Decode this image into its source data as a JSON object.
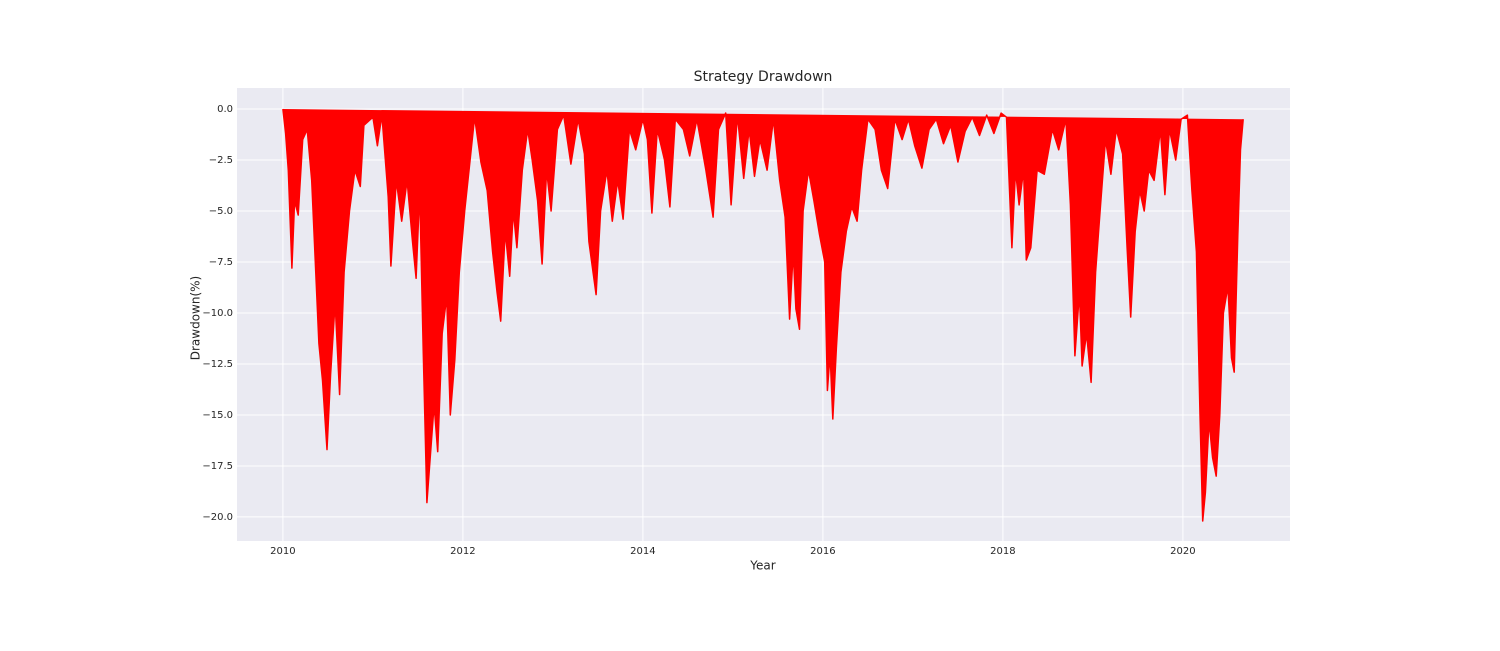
{
  "chart_data": {
    "type": "area",
    "title": "Strategy Drawdown",
    "x_label": "Year",
    "y_label": "Drawdown(%)",
    "color": "#ff0000",
    "background": "#eaeaf2",
    "grid": true,
    "x": [
      2010.0,
      2010.03,
      2010.06,
      2010.1,
      2010.13,
      2010.17,
      2010.22,
      2010.27,
      2010.32,
      2010.37,
      2010.4,
      2010.44,
      2010.49,
      2010.53,
      2010.58,
      2010.63,
      2010.68,
      2010.74,
      2010.8,
      2010.86,
      2010.9,
      2011.0,
      2011.05,
      2011.1,
      2011.17,
      2011.2,
      2011.26,
      2011.32,
      2011.38,
      2011.44,
      2011.48,
      2011.52,
      2011.56,
      2011.6,
      2011.64,
      2011.68,
      2011.72,
      2011.77,
      2011.82,
      2011.86,
      2011.91,
      2011.96,
      2012.02,
      2012.08,
      2012.13,
      2012.2,
      2012.27,
      2012.33,
      2012.38,
      2012.42,
      2012.47,
      2012.52,
      2012.56,
      2012.6,
      2012.66,
      2012.72,
      2012.77,
      2012.83,
      2012.88,
      2012.93,
      2012.98,
      2013.05,
      2013.12,
      2013.2,
      2013.28,
      2013.35,
      2013.4,
      2013.48,
      2013.53,
      2013.6,
      2013.66,
      2013.72,
      2013.78,
      2013.85,
      2013.92,
      2014.0,
      2014.05,
      2014.1,
      2014.16,
      2014.24,
      2014.3,
      2014.36,
      2014.45,
      2014.52,
      2014.6,
      2014.7,
      2014.78,
      2014.84,
      2014.92,
      2014.98,
      2015.05,
      2015.12,
      2015.18,
      2015.24,
      2015.3,
      2015.38,
      2015.45,
      2015.52,
      2015.58,
      2015.63,
      2015.67,
      2015.7,
      2015.74,
      2015.78,
      2015.84,
      2015.9,
      2015.96,
      2016.02,
      2016.05,
      2016.08,
      2016.11,
      2016.15,
      2016.2,
      2016.26,
      2016.32,
      2016.38,
      2016.43,
      2016.5,
      2016.58,
      2016.65,
      2016.72,
      2016.8,
      2016.88,
      2016.95,
      2017.02,
      2017.1,
      2017.18,
      2017.26,
      2017.34,
      2017.42,
      2017.5,
      2017.58,
      2017.66,
      2017.74,
      2017.82,
      2017.9,
      2017.98,
      2018.04,
      2018.1,
      2018.14,
      2018.18,
      2018.23,
      2018.26,
      2018.31,
      2018.38,
      2018.46,
      2018.55,
      2018.62,
      2018.7,
      2018.75,
      2018.8,
      2018.85,
      2018.88,
      2018.93,
      2018.98,
      2019.03,
      2019.08,
      2019.14,
      2019.2,
      2019.26,
      2019.33,
      2019.38,
      2019.42,
      2019.47,
      2019.52,
      2019.57,
      2019.62,
      2019.68,
      2019.75,
      2019.8,
      2019.85,
      2019.92,
      2019.98,
      2020.05,
      2020.1,
      2020.15,
      2020.19,
      2020.22,
      2020.25,
      2020.29,
      2020.33,
      2020.37,
      2020.41,
      2020.45,
      2020.5,
      2020.54,
      2020.57,
      2020.61,
      2020.64,
      2020.67
    ],
    "values": [
      0,
      -1.2,
      -3,
      -7.8,
      -4.5,
      -5.2,
      -1.5,
      -1,
      -3.5,
      -8.5,
      -11.5,
      -13.3,
      -16.7,
      -13,
      -9.5,
      -14,
      -8,
      -5,
      -3,
      -3.8,
      -0.8,
      -0.4,
      -1.8,
      -0.3,
      -4.3,
      -7.7,
      -3.5,
      -5.5,
      -3.5,
      -6.5,
      -8.3,
      -4,
      -12,
      -19.3,
      -16.9,
      -14.5,
      -16.8,
      -11,
      -9.2,
      -15,
      -12.3,
      -8,
      -5,
      -2.5,
      -0.4,
      -2.6,
      -4,
      -7,
      -9,
      -10.4,
      -6,
      -8.2,
      -5,
      -6.8,
      -3,
      -1,
      -2.5,
      -4.5,
      -7.6,
      -3,
      -5,
      -1,
      -0.3,
      -2.7,
      -0.5,
      -2.2,
      -6.5,
      -9.1,
      -5,
      -3,
      -5.5,
      -3.5,
      -5.4,
      -1,
      -2,
      -0.5,
      -1.5,
      -5.1,
      -1,
      -2.5,
      -4.8,
      -0.5,
      -1,
      -2.3,
      -0.5,
      -3,
      -5.3,
      -1,
      -0.2,
      -4.7,
      -0.3,
      -3.4,
      -1,
      -3.3,
      -1.5,
      -3,
      -0.5,
      -3.5,
      -5.3,
      -10.3,
      -7,
      -9.8,
      -10.8,
      -5,
      -3,
      -4.5,
      -6.1,
      -7.5,
      -13.8,
      -12,
      -15.2,
      -11.7,
      -8,
      -6,
      -4.8,
      -5.5,
      -3,
      -0.5,
      -1,
      -3,
      -3.9,
      -0.5,
      -1.5,
      -0.5,
      -1.8,
      -2.9,
      -1,
      -0.5,
      -1.7,
      -0.8,
      -2.6,
      -1.1,
      -0.4,
      -1.3,
      -0.3,
      -1.2,
      -0.2,
      -0.4,
      -6.8,
      -3,
      -4.7,
      -3,
      -7.4,
      -6.8,
      -3,
      -3.2,
      -1,
      -2,
      -0.5,
      -4.7,
      -12.1,
      -9,
      -12.6,
      -11,
      -13.4,
      -8,
      -5,
      -1.5,
      -3.2,
      -1,
      -2.2,
      -6.8,
      -10.2,
      -6,
      -4,
      -5,
      -3,
      -3.5,
      -1,
      -4.2,
      -1,
      -2.5,
      -0.5,
      -0.3,
      -4,
      -7,
      -15,
      -20.2,
      -18.8,
      -15.3,
      -17.1,
      -18,
      -15,
      -10,
      -8.7,
      -12.2,
      -12.9,
      -6.2,
      -2,
      -0.5
    ],
    "xlim": [
      2009.49,
      2021.19
    ],
    "xticks": [
      2010,
      2012,
      2014,
      2016,
      2018,
      2020
    ],
    "ylim": [
      -21.18,
      1.03
    ],
    "yticks": [
      {
        "value": 0,
        "label": "0.0"
      },
      {
        "value": -2.5,
        "label": "−2.5"
      },
      {
        "value": -5,
        "label": "−5.0"
      },
      {
        "value": -7.5,
        "label": "−7.5"
      },
      {
        "value": -10,
        "label": "−10.0"
      },
      {
        "value": -12.5,
        "label": "−12.5"
      },
      {
        "value": -15,
        "label": "−15.0"
      },
      {
        "value": -17.5,
        "label": "−17.5"
      },
      {
        "value": -20,
        "label": "−20.0"
      }
    ]
  }
}
